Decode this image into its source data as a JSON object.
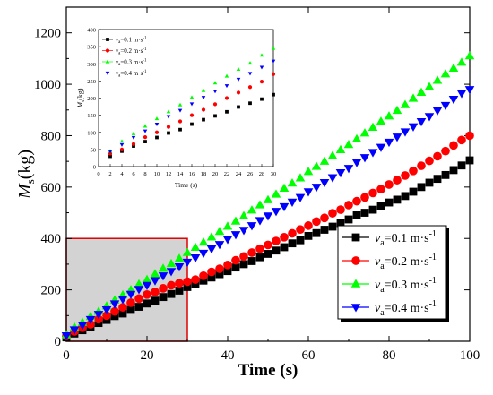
{
  "chart_data": [
    {
      "type": "scatter",
      "title": "",
      "xlabel": "Time (s)",
      "ylabel": "M",
      "ylabel_sub": "s",
      "ylabel_unit": "(kg)",
      "xlim": [
        0,
        100
      ],
      "ylim": [
        0,
        1300
      ],
      "xticks": [
        0,
        20,
        40,
        60,
        80,
        100
      ],
      "yticks": [
        0,
        200,
        400,
        600,
        800,
        1000,
        1200
      ],
      "grid": false,
      "legend_placement": "bottom-right",
      "x": [
        0,
        2,
        4,
        6,
        8,
        10,
        12,
        14,
        16,
        18,
        20,
        22,
        24,
        26,
        28,
        30,
        32,
        34,
        36,
        38,
        40,
        42,
        44,
        46,
        48,
        50,
        52,
        54,
        56,
        58,
        60,
        62,
        64,
        66,
        68,
        70,
        72,
        74,
        76,
        78,
        80,
        82,
        84,
        86,
        88,
        90,
        92,
        94,
        96,
        98,
        100
      ],
      "series": [
        {
          "name_var": "v",
          "name_sub": "a",
          "name_rest": "=0.1 m·s",
          "name_sup": "-1",
          "color": "#000000",
          "marker": "square",
          "values": [
            15,
            30,
            43,
            57,
            71,
            83,
            98,
            108,
            122,
            134,
            147,
            158,
            172,
            184,
            197,
            211,
            223,
            236,
            248,
            261,
            273,
            287,
            300,
            312,
            327,
            340,
            353,
            366,
            381,
            393,
            410,
            421,
            434,
            446,
            460,
            474,
            490,
            500,
            512,
            525,
            540,
            551,
            565,
            582,
            600,
            617,
            632,
            647,
            666,
            684,
            704
          ]
        },
        {
          "name_var": "v",
          "name_sub": "a",
          "name_rest": "=0.2 m·s",
          "name_sup": "-1",
          "color": "#ff0000",
          "marker": "circle",
          "values": [
            20,
            38,
            53,
            66,
            86,
            100,
            116,
            132,
            150,
            166,
            182,
            192,
            206,
            218,
            226,
            232,
            240,
            255,
            270,
            282,
            297,
            315,
            330,
            345,
            360,
            375,
            390,
            405,
            420,
            435,
            450,
            466,
            480,
            498,
            512,
            530,
            545,
            560,
            577,
            592,
            610,
            627,
            645,
            663,
            683,
            702,
            720,
            740,
            762,
            783,
            800
          ]
        },
        {
          "name_var": "v",
          "name_sub": "a",
          "name_rest": "=0.3 m·s",
          "name_sup": "-1",
          "color": "#00ff00",
          "marker": "triangle-up",
          "values": [
            25,
            55,
            73,
            96,
            116,
            137,
            160,
            180,
            200,
            222,
            240,
            262,
            283,
            302,
            322,
            345,
            365,
            385,
            405,
            427,
            447,
            467,
            488,
            510,
            530,
            550,
            572,
            595,
            615,
            635,
            660,
            680,
            700,
            722,
            745,
            765,
            787,
            810,
            832,
            855,
            876,
            898,
            920,
            945,
            968,
            990,
            1015,
            1040,
            1062,
            1085,
            1110
          ]
        },
        {
          "name_var": "v",
          "name_sub": "a",
          "name_rest": "=0.4 m·s",
          "name_sup": "-1",
          "color": "#0000ff",
          "marker": "triangle-down",
          "values": [
            22,
            45,
            63,
            85,
            105,
            123,
            146,
            164,
            183,
            202,
            218,
            236,
            255,
            272,
            290,
            308,
            325,
            343,
            360,
            377,
            397,
            415,
            432,
            450,
            470,
            488,
            506,
            524,
            542,
            560,
            582,
            600,
            618,
            637,
            656,
            673,
            696,
            715,
            735,
            755,
            775,
            795,
            815,
            835,
            855,
            875,
            898,
            918,
            942,
            965,
            980
          ]
        }
      ],
      "highlight_region": {
        "x_range": [
          0,
          30
        ],
        "y_range": [
          0,
          400
        ]
      }
    },
    {
      "type": "scatter",
      "title": "",
      "xlabel": "Time (s)",
      "ylabel": "M",
      "ylabel_sub": "s",
      "ylabel_unit": "(kg)",
      "xlim": [
        0,
        30
      ],
      "ylim": [
        0,
        400
      ],
      "xticks": [
        0,
        2,
        4,
        6,
        8,
        10,
        12,
        14,
        16,
        18,
        20,
        22,
        24,
        26,
        28,
        30
      ],
      "yticks": [
        0,
        50,
        100,
        150,
        200,
        250,
        300,
        350,
        400
      ],
      "grid": false,
      "legend_placement": "top-left",
      "x": [
        2,
        4,
        6,
        8,
        10,
        12,
        14,
        16,
        18,
        20,
        22,
        24,
        26,
        28,
        30
      ],
      "series": [
        {
          "name_var": "v",
          "name_sub": "a",
          "name_rest": "=0.1 m·s",
          "name_sup": "-1",
          "color": "#000000",
          "marker": "square",
          "values": [
            30,
            45,
            60,
            73,
            85,
            98,
            108,
            124,
            137,
            148,
            160,
            174,
            185,
            197,
            210
          ]
        },
        {
          "name_var": "v",
          "name_sub": "a",
          "name_rest": "=0.2 m·s",
          "name_sup": "-1",
          "color": "#ff0000",
          "marker": "circle",
          "values": [
            38,
            50,
            66,
            86,
            100,
            116,
            132,
            150,
            166,
            182,
            200,
            216,
            232,
            248,
            270
          ]
        },
        {
          "name_var": "v",
          "name_sub": "a",
          "name_rest": "=0.3 m·s",
          "name_sup": "-1",
          "color": "#00ff00",
          "marker": "triangle-up",
          "values": [
            45,
            74,
            96,
            118,
            140,
            160,
            180,
            202,
            222,
            244,
            264,
            284,
            302,
            325,
            345
          ]
        },
        {
          "name_var": "v",
          "name_sub": "a",
          "name_rest": "=0.4 m·s",
          "name_sup": "-1",
          "color": "#0000ff",
          "marker": "triangle-down",
          "values": [
            44,
            64,
            85,
            104,
            124,
            146,
            164,
            183,
            202,
            220,
            236,
            255,
            272,
            290,
            308
          ]
        }
      ]
    }
  ]
}
